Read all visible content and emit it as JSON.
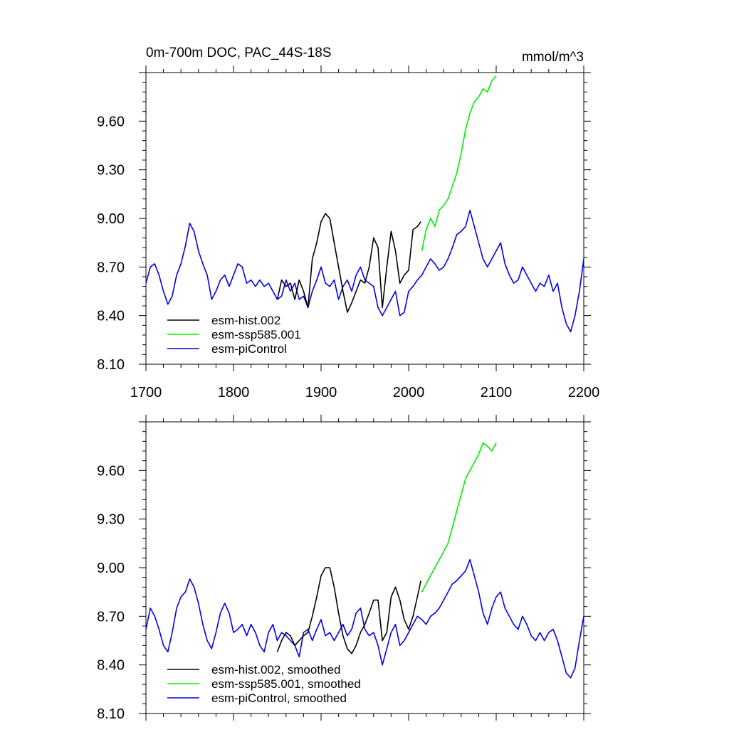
{
  "chart_data": [
    {
      "type": "line",
      "title": "0m-700m DOC, PAC_44S-18S",
      "units": "mmol/m^3",
      "xlim": [
        1700,
        2200
      ],
      "ylim": [
        8.1,
        9.9
      ],
      "x_ticks": [
        "1700",
        "1800",
        "1900",
        "2000",
        "2100",
        "2200"
      ],
      "y_ticks": [
        "8.10",
        "8.40",
        "8.70",
        "9.00",
        "9.30",
        "9.60"
      ],
      "legend_position": "bottom-left",
      "series": [
        {
          "name": "esm-hist.002",
          "color": "#000000",
          "x": [
            1850,
            1855,
            1860,
            1865,
            1870,
            1875,
            1880,
            1885,
            1890,
            1895,
            1900,
            1905,
            1910,
            1915,
            1920,
            1925,
            1930,
            1935,
            1940,
            1945,
            1950,
            1955,
            1960,
            1965,
            1970,
            1975,
            1980,
            1985,
            1990,
            1995,
            2000,
            2005,
            2010,
            2014
          ],
          "y": [
            8.5,
            8.62,
            8.58,
            8.6,
            8.5,
            8.62,
            8.55,
            8.45,
            8.75,
            8.85,
            8.98,
            9.03,
            9.0,
            8.85,
            8.7,
            8.55,
            8.42,
            8.48,
            8.55,
            8.62,
            8.6,
            8.7,
            8.88,
            8.82,
            8.45,
            8.7,
            8.92,
            8.8,
            8.6,
            8.65,
            8.68,
            8.93,
            8.95,
            8.98
          ]
        },
        {
          "name": "esm-ssp585.001",
          "color": "#00ee00",
          "x": [
            2015,
            2020,
            2025,
            2030,
            2035,
            2040,
            2045,
            2050,
            2055,
            2060,
            2065,
            2070,
            2075,
            2080,
            2085,
            2090,
            2095,
            2100
          ],
          "y": [
            8.8,
            8.93,
            9.0,
            8.95,
            9.05,
            9.08,
            9.12,
            9.2,
            9.28,
            9.4,
            9.55,
            9.65,
            9.72,
            9.75,
            9.8,
            9.78,
            9.85,
            9.88
          ]
        },
        {
          "name": "esm-piControl",
          "color": "#0000ee",
          "x": [
            1700,
            1705,
            1710,
            1715,
            1720,
            1725,
            1730,
            1735,
            1740,
            1745,
            1750,
            1755,
            1760,
            1765,
            1770,
            1775,
            1780,
            1785,
            1790,
            1795,
            1800,
            1805,
            1810,
            1815,
            1820,
            1825,
            1830,
            1835,
            1840,
            1845,
            1850,
            1855,
            1860,
            1865,
            1870,
            1875,
            1880,
            1885,
            1890,
            1895,
            1900,
            1905,
            1910,
            1915,
            1920,
            1925,
            1930,
            1935,
            1940,
            1945,
            1950,
            1955,
            1960,
            1965,
            1970,
            1975,
            1980,
            1985,
            1990,
            1995,
            2000,
            2005,
            2010,
            2015,
            2020,
            2025,
            2030,
            2035,
            2040,
            2045,
            2050,
            2055,
            2060,
            2065,
            2070,
            2075,
            2080,
            2085,
            2090,
            2095,
            2100,
            2105,
            2110,
            2115,
            2120,
            2125,
            2130,
            2135,
            2140,
            2145,
            2150,
            2155,
            2160,
            2165,
            2170,
            2175,
            2180,
            2185,
            2190,
            2195,
            2200
          ],
          "y": [
            8.6,
            8.7,
            8.72,
            8.65,
            8.55,
            8.47,
            8.52,
            8.65,
            8.72,
            8.83,
            8.97,
            8.92,
            8.8,
            8.72,
            8.65,
            8.5,
            8.55,
            8.62,
            8.65,
            8.58,
            8.65,
            8.72,
            8.7,
            8.6,
            8.62,
            8.58,
            8.62,
            8.58,
            8.6,
            8.55,
            8.5,
            8.52,
            8.62,
            8.55,
            8.6,
            8.5,
            8.52,
            8.45,
            8.55,
            8.62,
            8.7,
            8.6,
            8.58,
            8.62,
            8.5,
            8.58,
            8.62,
            8.55,
            8.65,
            8.7,
            8.62,
            8.6,
            8.58,
            8.45,
            8.4,
            8.45,
            8.5,
            8.55,
            8.4,
            8.42,
            8.55,
            8.58,
            8.62,
            8.65,
            8.7,
            8.75,
            8.72,
            8.68,
            8.7,
            8.75,
            8.82,
            8.9,
            8.92,
            8.95,
            9.05,
            8.95,
            8.85,
            8.75,
            8.7,
            8.75,
            8.8,
            8.85,
            8.72,
            8.65,
            8.6,
            8.62,
            8.7,
            8.65,
            8.6,
            8.55,
            8.6,
            8.58,
            8.65,
            8.55,
            8.6,
            8.45,
            8.35,
            8.3,
            8.4,
            8.55,
            8.75
          ]
        }
      ]
    },
    {
      "type": "line",
      "title": "",
      "xlim": [
        1700,
        2200
      ],
      "ylim": [
        8.1,
        9.9
      ],
      "y_ticks": [
        "8.10",
        "8.40",
        "8.70",
        "9.00",
        "9.30",
        "9.60"
      ],
      "legend_position": "bottom-left",
      "series": [
        {
          "name": "esm-hist.002, smoothed",
          "color": "#000000",
          "x": [
            1850,
            1855,
            1860,
            1865,
            1870,
            1875,
            1880,
            1885,
            1890,
            1895,
            1900,
            1905,
            1910,
            1915,
            1920,
            1925,
            1930,
            1935,
            1940,
            1945,
            1950,
            1955,
            1960,
            1965,
            1970,
            1975,
            1980,
            1985,
            1990,
            1995,
            2000,
            2005,
            2010,
            2014
          ],
          "y": [
            8.48,
            8.55,
            8.6,
            8.58,
            8.52,
            8.55,
            8.58,
            8.6,
            8.7,
            8.82,
            8.95,
            9.0,
            9.0,
            8.88,
            8.72,
            8.58,
            8.5,
            8.47,
            8.52,
            8.6,
            8.65,
            8.72,
            8.8,
            8.8,
            8.55,
            8.6,
            8.82,
            8.88,
            8.8,
            8.68,
            8.62,
            8.7,
            8.82,
            8.92
          ]
        },
        {
          "name": "esm-ssp585.001, smoothed",
          "color": "#00ee00",
          "x": [
            2015,
            2020,
            2025,
            2030,
            2035,
            2040,
            2045,
            2050,
            2055,
            2060,
            2065,
            2070,
            2075,
            2080,
            2085,
            2090,
            2095,
            2100
          ],
          "y": [
            8.85,
            8.9,
            8.95,
            9.0,
            9.05,
            9.1,
            9.15,
            9.25,
            9.35,
            9.45,
            9.55,
            9.6,
            9.65,
            9.7,
            9.77,
            9.75,
            9.72,
            9.77
          ]
        },
        {
          "name": "esm-piControl, smoothed",
          "color": "#0000ee",
          "x": [
            1700,
            1705,
            1710,
            1715,
            1720,
            1725,
            1730,
            1735,
            1740,
            1745,
            1750,
            1755,
            1760,
            1765,
            1770,
            1775,
            1780,
            1785,
            1790,
            1795,
            1800,
            1805,
            1810,
            1815,
            1820,
            1825,
            1830,
            1835,
            1840,
            1845,
            1850,
            1855,
            1860,
            1865,
            1870,
            1875,
            1880,
            1885,
            1890,
            1895,
            1900,
            1905,
            1910,
            1915,
            1920,
            1925,
            1930,
            1935,
            1940,
            1945,
            1950,
            1955,
            1960,
            1965,
            1970,
            1975,
            1980,
            1985,
            1990,
            1995,
            2000,
            2005,
            2010,
            2015,
            2020,
            2025,
            2030,
            2035,
            2040,
            2045,
            2050,
            2055,
            2060,
            2065,
            2070,
            2075,
            2080,
            2085,
            2090,
            2095,
            2100,
            2105,
            2110,
            2115,
            2120,
            2125,
            2130,
            2135,
            2140,
            2145,
            2150,
            2155,
            2160,
            2165,
            2170,
            2175,
            2180,
            2185,
            2190,
            2195,
            2200
          ],
          "y": [
            8.62,
            8.75,
            8.7,
            8.62,
            8.52,
            8.48,
            8.6,
            8.75,
            8.82,
            8.85,
            8.93,
            8.88,
            8.78,
            8.65,
            8.55,
            8.5,
            8.6,
            8.72,
            8.78,
            8.72,
            8.6,
            8.62,
            8.65,
            8.58,
            8.65,
            8.6,
            8.52,
            8.48,
            8.6,
            8.65,
            8.55,
            8.6,
            8.58,
            8.55,
            8.52,
            8.45,
            8.6,
            8.62,
            8.55,
            8.62,
            8.68,
            8.58,
            8.6,
            8.55,
            8.6,
            8.65,
            8.58,
            8.62,
            8.72,
            8.75,
            8.62,
            8.58,
            8.6,
            8.52,
            8.4,
            8.5,
            8.6,
            8.65,
            8.52,
            8.55,
            8.6,
            8.65,
            8.7,
            8.68,
            8.65,
            8.7,
            8.72,
            8.75,
            8.8,
            8.85,
            8.9,
            8.92,
            8.95,
            8.98,
            9.05,
            8.95,
            8.85,
            8.72,
            8.65,
            8.75,
            8.82,
            8.85,
            8.75,
            8.7,
            8.65,
            8.62,
            8.7,
            8.65,
            8.58,
            8.55,
            8.6,
            8.55,
            8.6,
            8.62,
            8.55,
            8.45,
            8.35,
            8.32,
            8.38,
            8.55,
            8.7
          ]
        }
      ]
    }
  ]
}
